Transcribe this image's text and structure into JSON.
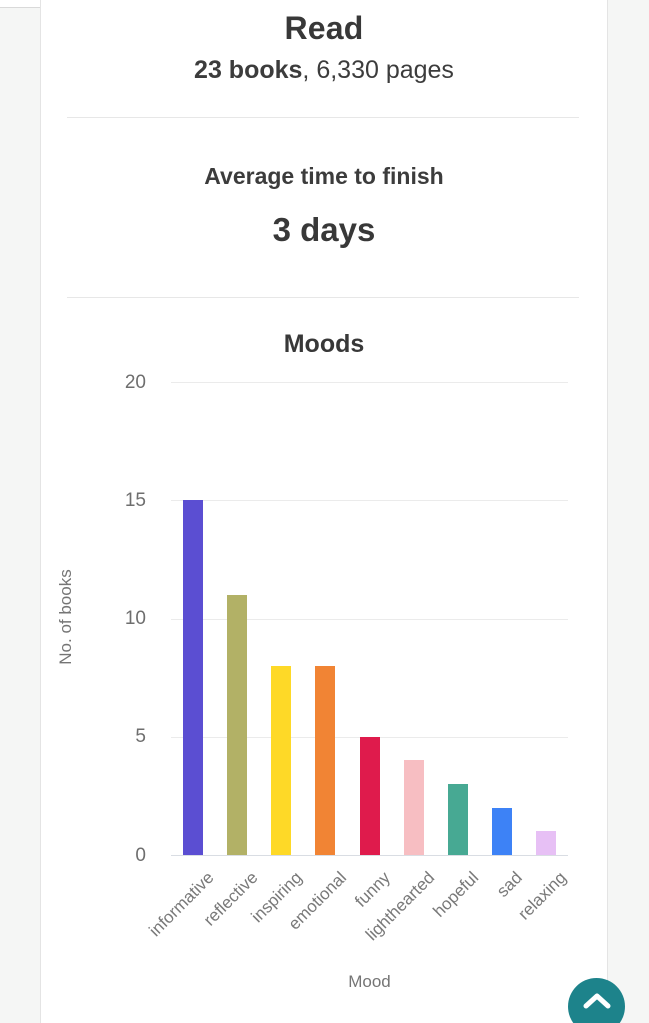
{
  "read_section": {
    "title": "Read",
    "books": "23 books",
    "pages": ", 6,330 pages"
  },
  "average_section": {
    "label": "Average time to finish",
    "value": "3 days"
  },
  "moods_section": {
    "title": "Moods"
  },
  "chart_data": {
    "type": "bar",
    "title": "Moods",
    "categories": [
      "informative",
      "reflective",
      "inspiring",
      "emotional",
      "funny",
      "lighthearted",
      "hopeful",
      "sad",
      "relaxing"
    ],
    "values": [
      15,
      11,
      8,
      8,
      5,
      4,
      3,
      2,
      1
    ],
    "bar_colors": [
      "#5b4ed2",
      "#b2b166",
      "#fed927",
      "#f18434",
      "#df1b4c",
      "#f7bec2",
      "#47a993",
      "#3d82f6",
      "#e7c0f5"
    ],
    "xlabel": "Mood",
    "ylabel": "No. of books",
    "yticks": [
      0,
      5,
      10,
      15,
      20
    ],
    "ylim": [
      0,
      20
    ],
    "grid": true,
    "legend": "none"
  },
  "scroll_top_button": {
    "icon": "chevron-up",
    "color": "#1d838b"
  },
  "colors": {
    "page_background": "#f5f6f5",
    "card_background": "#ffffff",
    "heading_text": "#383838",
    "axis_text": "#757575",
    "gridline": "#ebebeb"
  }
}
